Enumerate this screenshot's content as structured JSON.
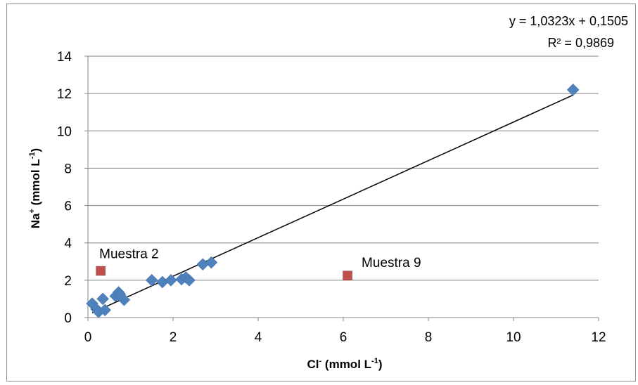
{
  "chart_data": {
    "type": "scatter",
    "xlabel": {
      "base": "Cl",
      "sup": "-",
      "rest": " (mmol L",
      "sup2": "-1",
      "end": ")"
    },
    "ylabel": {
      "base": "Na",
      "sup": "+",
      "rest": " (mmol L",
      "sup2": "-1",
      "end": ")"
    },
    "xlim": [
      0,
      12
    ],
    "ylim": [
      0,
      14
    ],
    "xticks": [
      "0",
      "2",
      "4",
      "6",
      "8",
      "10",
      "12"
    ],
    "yticks": [
      "0",
      "2",
      "4",
      "6",
      "8",
      "10",
      "12",
      "14"
    ],
    "grid": "horizontal",
    "series": [
      {
        "marker": "diamond",
        "color": "#4f81bd",
        "points": [
          [
            0.1,
            0.75
          ],
          [
            0.2,
            0.45
          ],
          [
            0.25,
            0.3
          ],
          [
            0.35,
            1.0
          ],
          [
            0.4,
            0.4
          ],
          [
            0.65,
            1.15
          ],
          [
            0.72,
            1.35
          ],
          [
            0.75,
            1.25
          ],
          [
            0.85,
            0.95
          ],
          [
            1.5,
            2.0
          ],
          [
            1.75,
            1.9
          ],
          [
            1.95,
            2.0
          ],
          [
            2.2,
            2.05
          ],
          [
            2.3,
            2.15
          ],
          [
            2.38,
            2.0
          ],
          [
            2.7,
            2.85
          ],
          [
            2.9,
            2.95
          ],
          [
            11.4,
            12.2
          ]
        ]
      },
      {
        "marker": "square",
        "color": "#c0504d",
        "points": [
          [
            0.3,
            2.5
          ],
          [
            6.1,
            2.25
          ]
        ]
      }
    ],
    "trendline": {
      "slope": 1.0323,
      "intercept": 0.1505,
      "x_range": [
        0.1,
        11.4
      ],
      "color": "#000000"
    },
    "equation": "y = 1,0323x + 0,1505",
    "r_squared": "R² = 0,9869",
    "annotations": [
      {
        "text": "Muestra 2",
        "x": 0.3,
        "y": 2.5
      },
      {
        "text": "Muestra 9",
        "x": 6.1,
        "y": 2.25
      }
    ]
  }
}
